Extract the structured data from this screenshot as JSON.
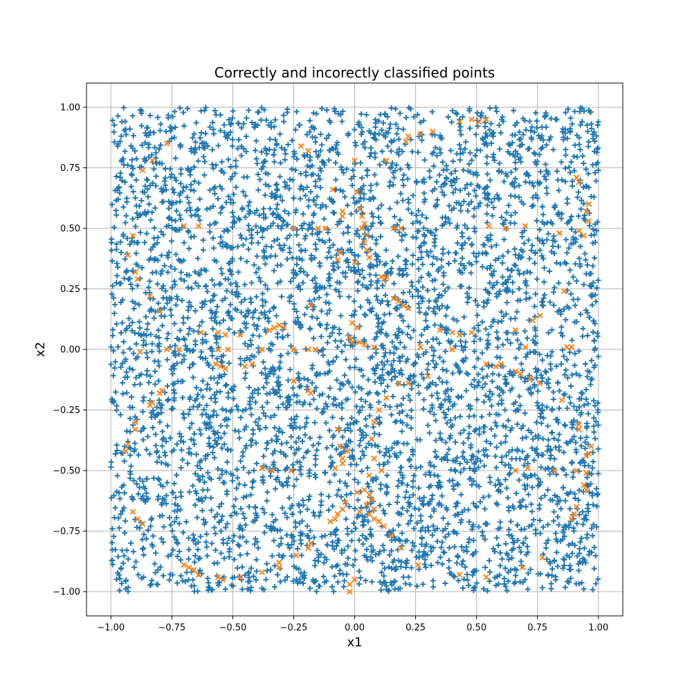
{
  "chart_data": {
    "type": "scatter",
    "title": "Correctly and incorectly classified points",
    "xlabel": "x1",
    "ylabel": "x2",
    "xlim": [
      -1.1,
      1.1
    ],
    "ylim": [
      -1.1,
      1.1
    ],
    "xticks": [
      -1.0,
      -0.75,
      -0.5,
      -0.25,
      0.0,
      0.25,
      0.5,
      0.75,
      1.0
    ],
    "yticks": [
      -1.0,
      -0.75,
      -0.5,
      -0.25,
      0.0,
      0.25,
      0.5,
      0.75,
      1.0
    ],
    "xtick_labels": [
      "−1.00",
      "−0.75",
      "−0.50",
      "−0.25",
      "0.00",
      "0.25",
      "0.50",
      "0.75",
      "1.00"
    ],
    "ytick_labels": [
      "−1.00",
      "−0.75",
      "−0.50",
      "−0.25",
      "0.00",
      "0.25",
      "0.50",
      "0.75",
      "1.00"
    ],
    "grid": true,
    "colors": {
      "correct": "#1f77b4",
      "incorrect": "#ff7f0e"
    },
    "series": [
      {
        "marker": "plus",
        "color": "#1f77b4",
        "distribution": {
          "kind": "uniform",
          "x_range": [
            -1,
            1
          ],
          "y_range": [
            -1,
            1
          ],
          "count": 4700
        }
      },
      {
        "marker": "x",
        "color": "#ff7f0e",
        "points": [
          [
            -0.22,
            0.84
          ],
          [
            -0.19,
            0.82
          ],
          [
            0.0,
            0.78
          ],
          [
            -0.83,
            0.78
          ],
          [
            -0.87,
            0.74
          ],
          [
            -0.77,
            0.85
          ],
          [
            0.22,
            0.88
          ],
          [
            0.21,
            0.86
          ],
          [
            0.27,
            0.89
          ],
          [
            0.32,
            0.9
          ],
          [
            0.43,
            0.94
          ],
          [
            0.48,
            0.95
          ],
          [
            0.51,
            0.94
          ],
          [
            0.54,
            0.95
          ],
          [
            0.13,
            0.78
          ],
          [
            0.91,
            0.71
          ],
          [
            0.92,
            0.69
          ],
          [
            0.96,
            0.6
          ],
          [
            0.95,
            0.57
          ],
          [
            0.96,
            0.53
          ],
          [
            0.92,
            0.49
          ],
          [
            0.94,
            0.47
          ],
          [
            -0.09,
            0.66
          ],
          [
            0.01,
            0.65
          ],
          [
            -0.05,
            0.57
          ],
          [
            -0.05,
            0.55
          ],
          [
            0.02,
            0.58
          ],
          [
            0.03,
            0.55
          ],
          [
            0.04,
            0.52
          ],
          [
            0.03,
            0.5
          ],
          [
            0.05,
            0.47
          ],
          [
            0.04,
            0.44
          ],
          [
            0.05,
            0.41
          ],
          [
            0.06,
            0.38
          ],
          [
            -0.06,
            0.4
          ],
          [
            -0.07,
            0.37
          ],
          [
            0.0,
            0.36
          ],
          [
            0.16,
            0.5
          ],
          [
            0.19,
            0.5
          ],
          [
            -0.25,
            0.5
          ],
          [
            -0.15,
            0.5
          ],
          [
            -0.12,
            0.5
          ],
          [
            -0.7,
            0.51
          ],
          [
            -0.64,
            0.51
          ],
          [
            0.55,
            0.51
          ],
          [
            0.62,
            0.5
          ],
          [
            0.7,
            0.51
          ],
          [
            0.84,
            0.48
          ],
          [
            -0.91,
            0.47
          ],
          [
            -0.93,
            0.39
          ],
          [
            -0.9,
            0.32
          ],
          [
            -0.89,
            0.29
          ],
          [
            0.11,
            0.3
          ],
          [
            0.12,
            0.29
          ],
          [
            0.13,
            0.3
          ],
          [
            -0.84,
            0.22
          ],
          [
            -0.8,
            0.16
          ],
          [
            -0.18,
            0.18
          ],
          [
            0.16,
            0.21
          ],
          [
            0.18,
            0.2
          ],
          [
            0.2,
            0.18
          ],
          [
            0.22,
            0.17
          ],
          [
            0.86,
            0.24
          ],
          [
            0.76,
            0.14
          ],
          [
            0.73,
            0.12
          ],
          [
            -0.01,
            0.11
          ],
          [
            0.01,
            0.09
          ],
          [
            -0.35,
            0.08
          ],
          [
            -0.33,
            0.09
          ],
          [
            -0.31,
            0.1
          ],
          [
            -0.29,
            0.09
          ],
          [
            -0.63,
            0.07
          ],
          [
            -0.56,
            0.07
          ],
          [
            -0.53,
            0.06
          ],
          [
            -0.47,
            0.06
          ],
          [
            0.35,
            0.08
          ],
          [
            0.4,
            0.07
          ],
          [
            0.43,
            0.06
          ],
          [
            0.48,
            0.07
          ],
          [
            0.66,
            0.08
          ],
          [
            -0.02,
            0.05
          ],
          [
            -0.01,
            0.03
          ],
          [
            0.02,
            0.03
          ],
          [
            0.04,
            0.02
          ],
          [
            0.08,
            0.01
          ],
          [
            -0.88,
            -0.01
          ],
          [
            -0.77,
            0.0
          ],
          [
            -0.72,
            0.0
          ],
          [
            -0.56,
            0.0
          ],
          [
            -0.52,
            0.0
          ],
          [
            -0.38,
            0.0
          ],
          [
            -0.25,
            0.0
          ],
          [
            -0.19,
            0.0
          ],
          [
            -0.16,
            0.0
          ],
          [
            0.27,
            0.01
          ],
          [
            0.4,
            0.0
          ],
          [
            0.7,
            0.01
          ],
          [
            0.87,
            0.01
          ],
          [
            0.89,
            0.01
          ],
          [
            -0.57,
            -0.06
          ],
          [
            -0.55,
            -0.07
          ],
          [
            -0.53,
            -0.08
          ],
          [
            -0.45,
            -0.07
          ],
          [
            -0.42,
            -0.06
          ],
          [
            0.54,
            -0.06
          ],
          [
            0.58,
            -0.07
          ],
          [
            0.6,
            -0.06
          ],
          [
            0.66,
            -0.09
          ],
          [
            0.68,
            -0.1
          ],
          [
            0.72,
            -0.12
          ],
          [
            0.76,
            -0.14
          ],
          [
            0.3,
            -0.11
          ],
          [
            -0.25,
            -0.13
          ],
          [
            -0.19,
            -0.17
          ],
          [
            -0.18,
            -0.18
          ],
          [
            -0.8,
            -0.18
          ],
          [
            -0.79,
            -0.17
          ],
          [
            -0.84,
            -0.23
          ],
          [
            -0.83,
            -0.22
          ],
          [
            0.1,
            -0.25
          ],
          [
            0.13,
            -0.2
          ],
          [
            0.18,
            -0.14
          ],
          [
            0.22,
            -0.14
          ],
          [
            0.85,
            -0.21
          ],
          [
            -0.9,
            -0.3
          ],
          [
            -0.9,
            -0.33
          ],
          [
            0.08,
            -0.3
          ],
          [
            -0.07,
            -0.33
          ],
          [
            0.92,
            -0.33
          ],
          [
            0.92,
            -0.31
          ],
          [
            -0.93,
            -0.39
          ],
          [
            -0.94,
            -0.42
          ],
          [
            -0.06,
            -0.4
          ],
          [
            -0.03,
            -0.42
          ],
          [
            0.07,
            -0.37
          ],
          [
            0.97,
            -0.4
          ],
          [
            0.96,
            -0.43
          ],
          [
            0.95,
            -0.44
          ],
          [
            -0.38,
            -0.49
          ],
          [
            -0.34,
            -0.5
          ],
          [
            -0.26,
            -0.5
          ],
          [
            -0.08,
            -0.49
          ],
          [
            -0.05,
            -0.47
          ],
          [
            -0.05,
            -0.45
          ],
          [
            0.08,
            -0.45
          ],
          [
            0.11,
            -0.5
          ],
          [
            0.66,
            -0.5
          ],
          [
            0.71,
            -0.49
          ],
          [
            0.82,
            -0.5
          ],
          [
            0.91,
            -0.5
          ],
          [
            0.95,
            -0.51
          ],
          [
            0.06,
            -0.52
          ],
          [
            0.04,
            -0.58
          ],
          [
            0.06,
            -0.6
          ],
          [
            0.07,
            -0.62
          ],
          [
            0.05,
            -0.64
          ],
          [
            0.08,
            -0.66
          ],
          [
            0.06,
            -0.68
          ],
          [
            0.08,
            -0.7
          ],
          [
            0.1,
            -0.71
          ],
          [
            0.12,
            -0.73
          ],
          [
            0.02,
            -0.67
          ],
          [
            0.01,
            -0.59
          ],
          [
            -0.04,
            -0.63
          ],
          [
            -0.05,
            -0.66
          ],
          [
            -0.07,
            -0.68
          ],
          [
            -0.08,
            -0.7
          ],
          [
            -0.1,
            -0.71
          ],
          [
            0.94,
            -0.56
          ],
          [
            0.95,
            -0.58
          ],
          [
            0.91,
            -0.65
          ],
          [
            0.9,
            -0.68
          ],
          [
            0.89,
            -0.7
          ],
          [
            -0.91,
            -0.67
          ],
          [
            -0.89,
            -0.7
          ],
          [
            -0.87,
            -0.72
          ],
          [
            0.15,
            -0.77
          ],
          [
            0.19,
            -0.82
          ],
          [
            -0.18,
            -0.8
          ],
          [
            -0.19,
            -0.82
          ],
          [
            -0.7,
            -0.89
          ],
          [
            -0.68,
            -0.9
          ],
          [
            -0.66,
            -0.91
          ],
          [
            -0.64,
            -0.93
          ],
          [
            -0.56,
            -0.94
          ],
          [
            -0.54,
            -0.95
          ],
          [
            -0.47,
            -0.94
          ],
          [
            -0.38,
            -0.92
          ],
          [
            -0.31,
            -0.88
          ],
          [
            -0.31,
            -0.9
          ],
          [
            -0.24,
            -0.85
          ],
          [
            0.26,
            -0.89
          ],
          [
            0.43,
            -0.93
          ],
          [
            0.54,
            -0.94
          ],
          [
            0.69,
            -0.9
          ],
          [
            0.77,
            -0.86
          ],
          [
            -0.02,
            -0.97
          ],
          [
            -0.02,
            -1.0
          ],
          [
            0.0,
            -0.95
          ]
        ]
      }
    ]
  }
}
